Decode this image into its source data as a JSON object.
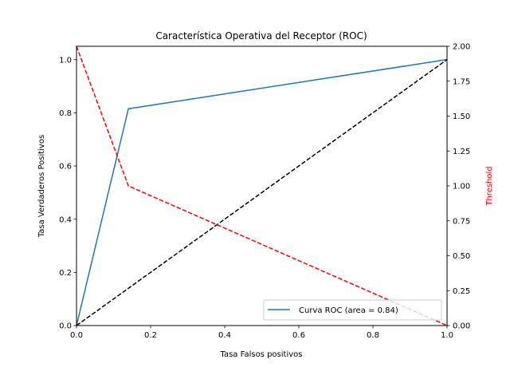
{
  "chart_data": {
    "type": "line",
    "title": "Característica Operativa del Receptor (ROC)",
    "xlabel": "Tasa Falsos positivos",
    "ylabel": "Tasa Verdaderos Positivos",
    "y2label": "Threshold",
    "xlim": [
      0.0,
      1.0
    ],
    "ylim": [
      0.0,
      1.05
    ],
    "y2lim": [
      0.0,
      2.0
    ],
    "x_ticks": [
      "0.0",
      "0.2",
      "0.4",
      "0.6",
      "0.8",
      "1.0"
    ],
    "y_ticks": [
      "0.0",
      "0.2",
      "0.4",
      "0.6",
      "0.8",
      "1.0"
    ],
    "y2_ticks": [
      "0.00",
      "0.25",
      "0.50",
      "0.75",
      "1.00",
      "1.25",
      "1.50",
      "1.75",
      "2.00"
    ],
    "grid": false,
    "legend_position": "lower-right",
    "colors": {
      "roc": "#1f77b4",
      "diagonal": "#000000",
      "threshold": "#ff0000"
    },
    "series": [
      {
        "name": "Curva ROC (area = 0.84)",
        "axis": "left",
        "style": "solid",
        "x": [
          0.0,
          0.14,
          1.0
        ],
        "y": [
          0.0,
          0.815,
          1.0
        ]
      },
      {
        "axis": "left",
        "style": "dashed",
        "x": [
          0.0,
          1.0
        ],
        "y": [
          0.0,
          1.0
        ]
      },
      {
        "axis": "right",
        "style": "dashed",
        "x": [
          0.0,
          0.14,
          1.0
        ],
        "y": [
          2.0,
          1.0,
          0.0
        ]
      }
    ]
  }
}
